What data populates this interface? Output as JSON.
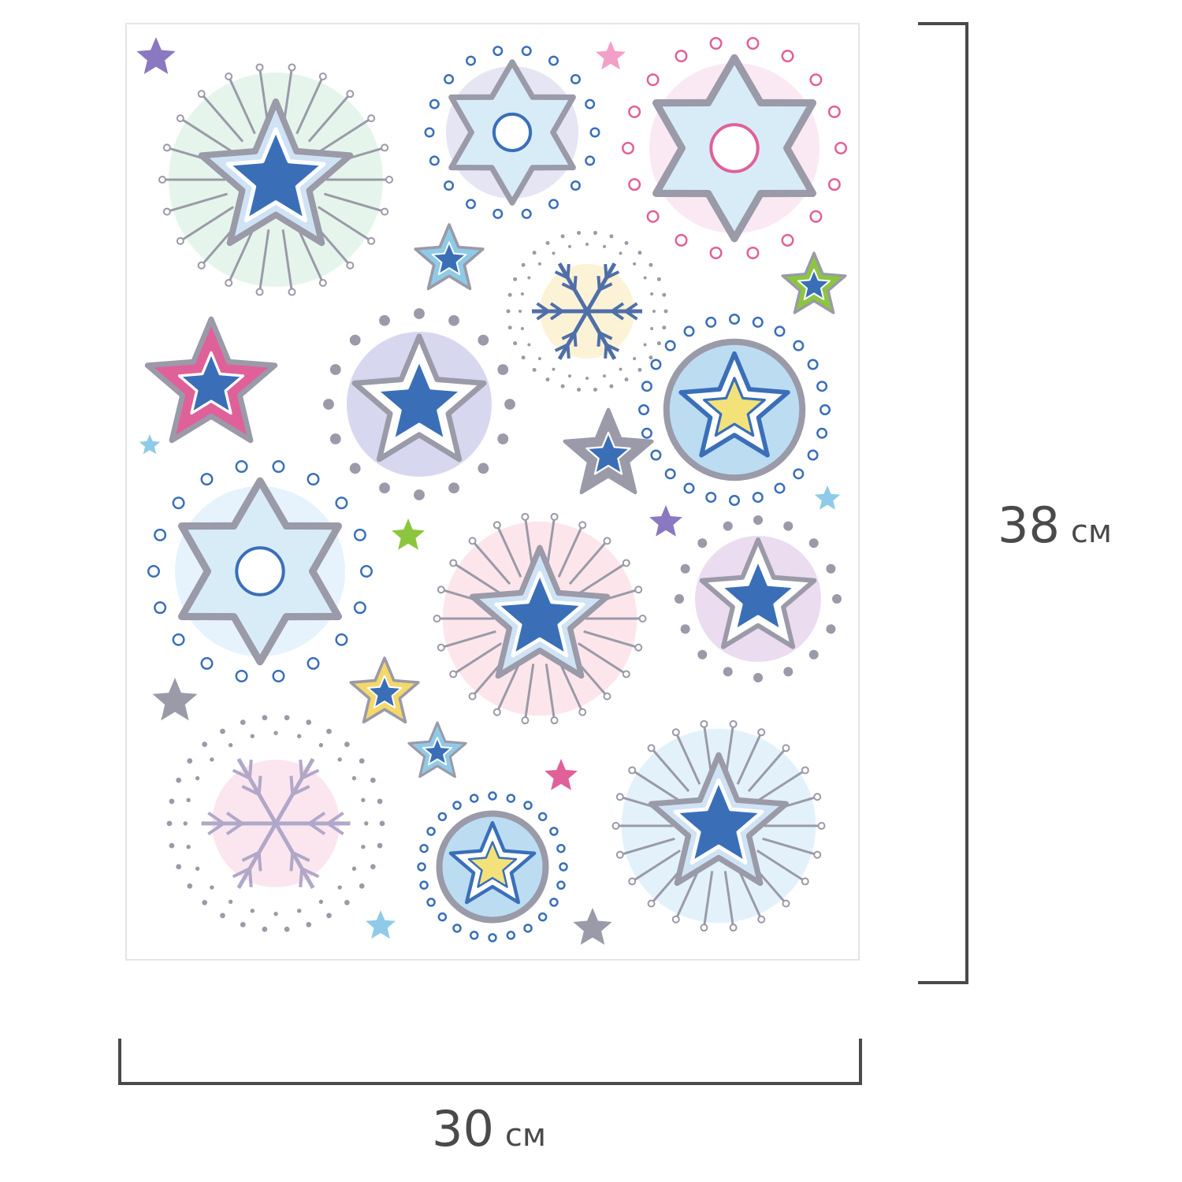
{
  "product": {
    "height": {
      "value": "38",
      "unit": "см"
    },
    "width": {
      "value": "30",
      "unit": "см"
    }
  },
  "colors": {
    "dimension_lines": "#4a4a4a",
    "sheet_border": "#e4e4ea",
    "glitter_silver": "#9a9aa8",
    "blue": "#3a6fb8",
    "light_blue": "#8fcbe8",
    "pink": "#e0609a",
    "violet": "#8a78c0",
    "green": "#8cc63f",
    "yellow": "#f3e27a"
  },
  "sticker_sheet": {
    "motifs": [
      "star-medallion",
      "snowflake",
      "six-point-star",
      "five-point-star",
      "circle-star-badge"
    ]
  }
}
